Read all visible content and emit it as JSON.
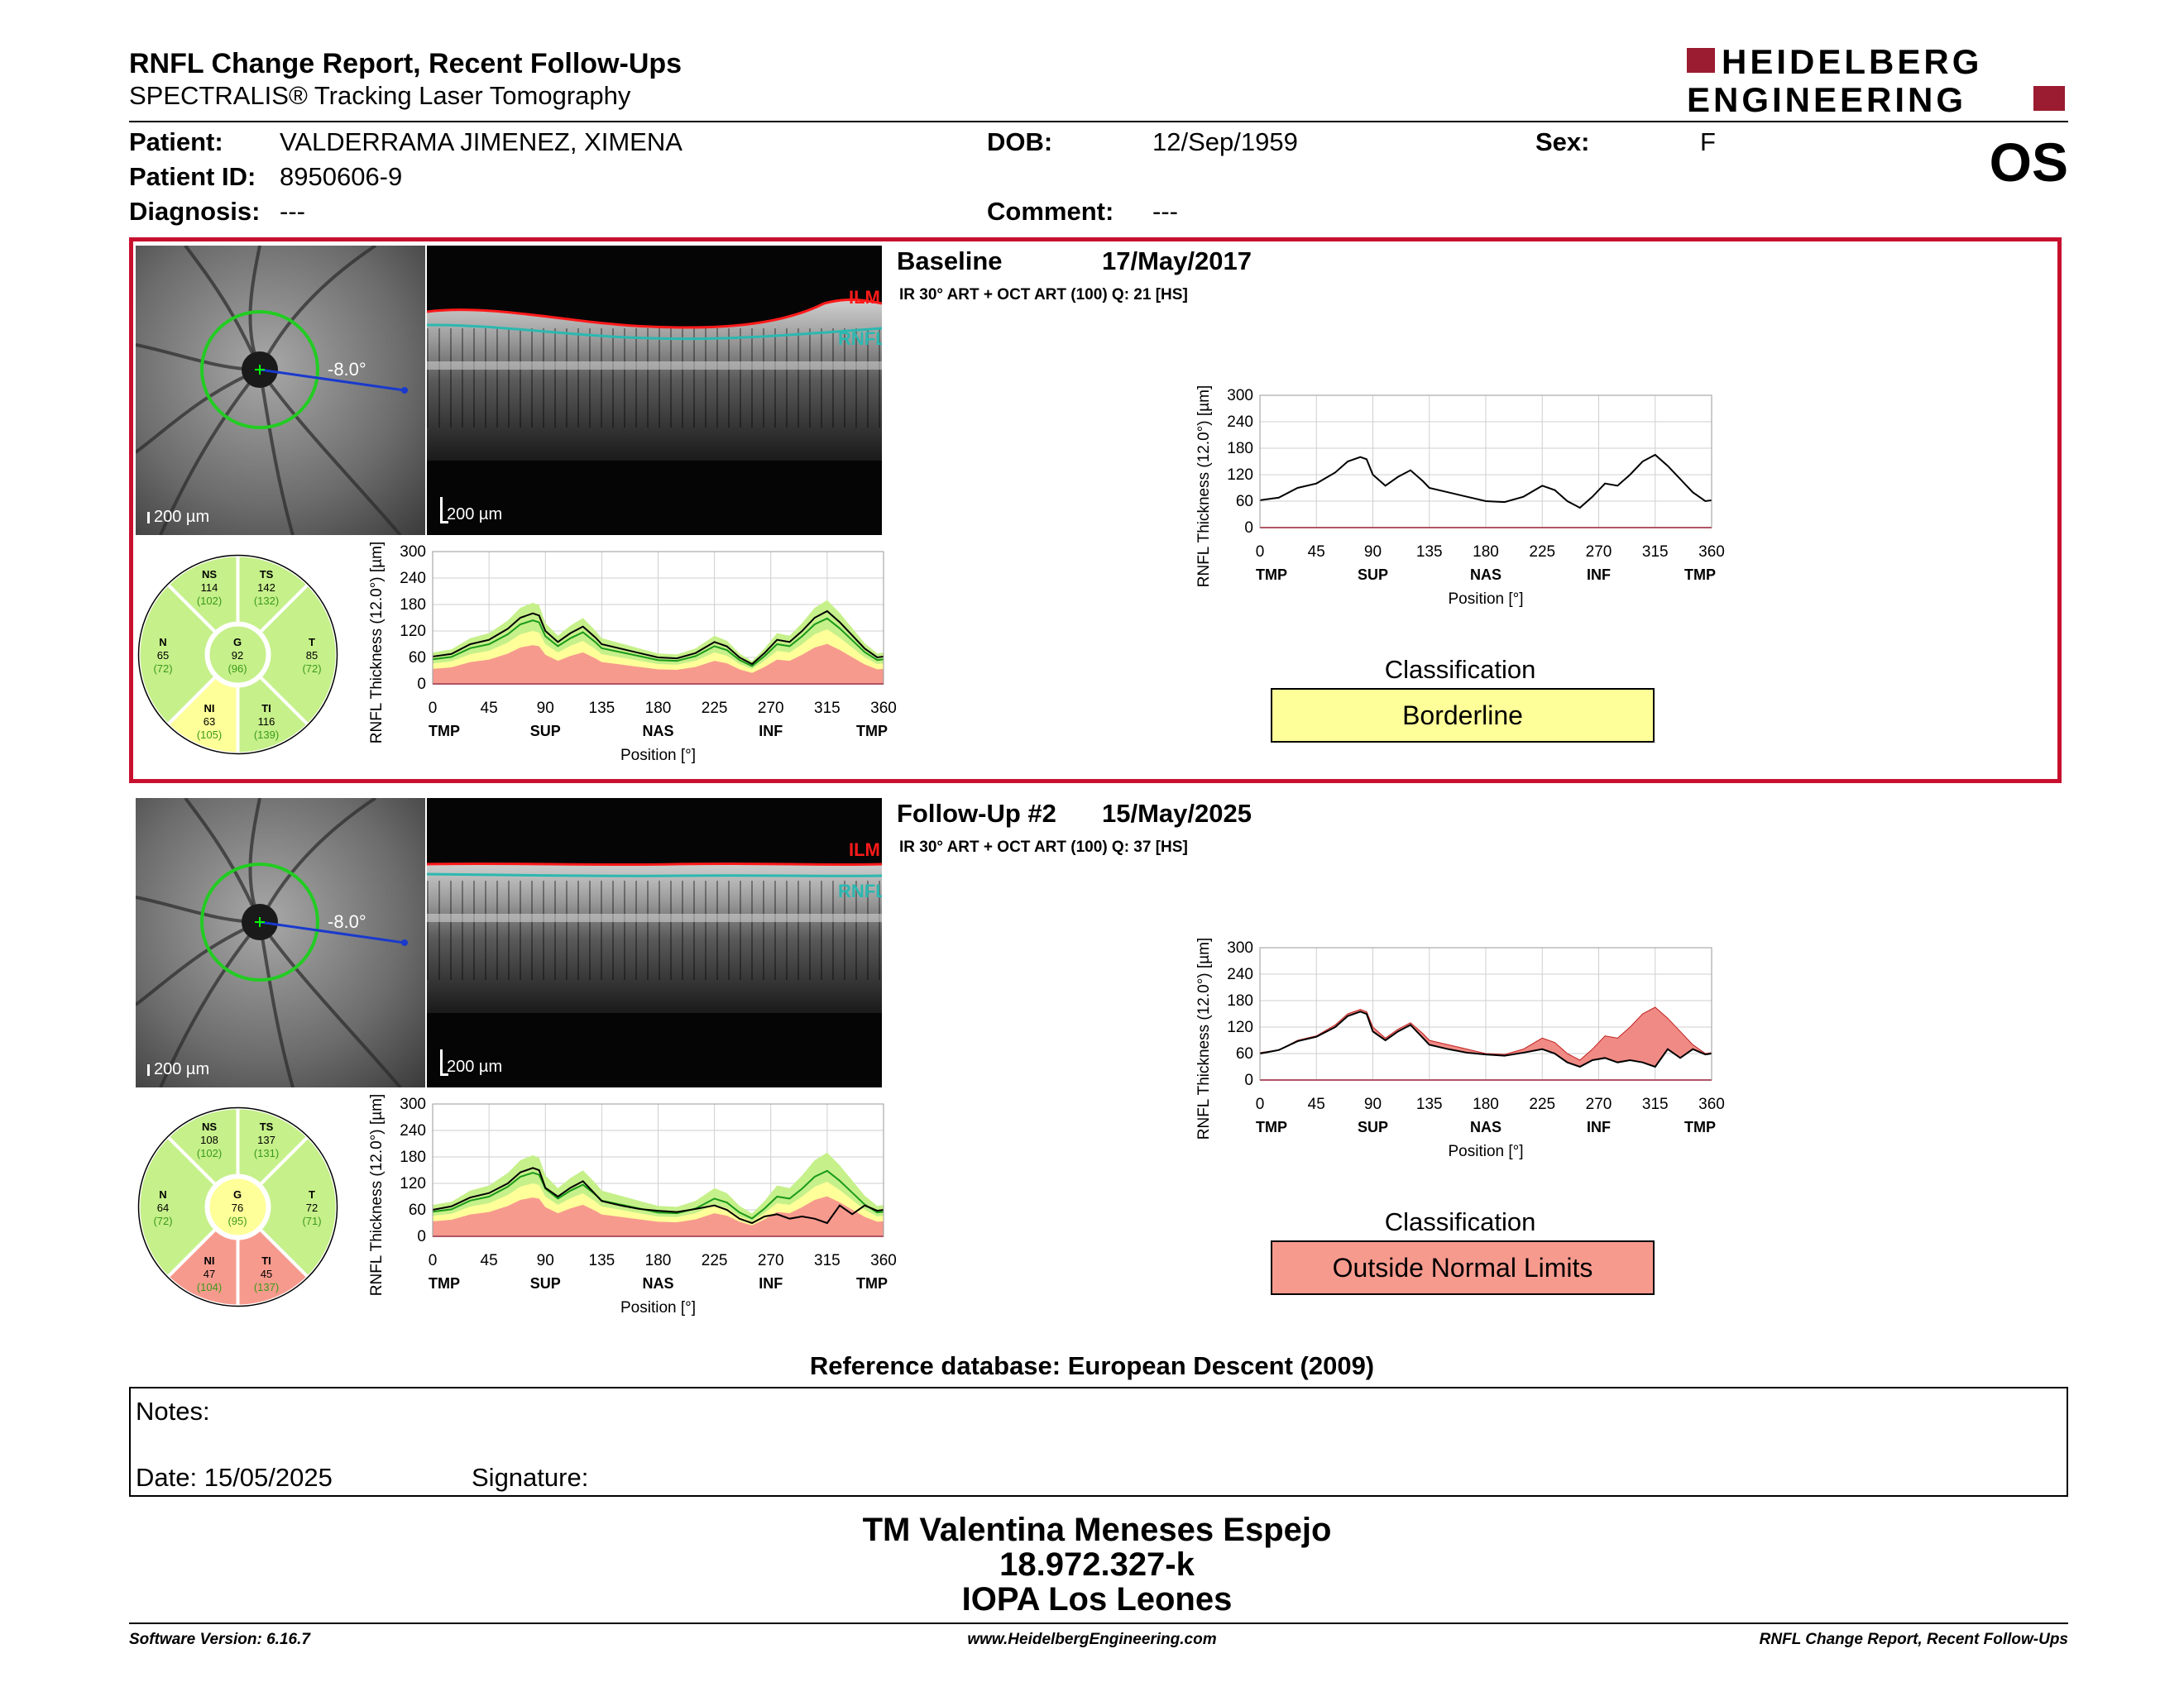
{
  "header": {
    "title": "RNFL Change Report, Recent Follow-Ups",
    "subtitle": "SPECTRALIS® Tracking Laser Tomography",
    "logo_line1": "HEIDELBERG",
    "logo_line2": "ENGINEERING",
    "eye": "OS"
  },
  "patient": {
    "patient_label": "Patient:",
    "patient_value": "VALDERRAMA JIMENEZ, XIMENA",
    "id_label": "Patient ID:",
    "id_value": "8950606-9",
    "diag_label": "Diagnosis:",
    "diag_value": "---",
    "dob_label": "DOB:",
    "dob_value": "12/Sep/1959",
    "comment_label": "Comment:",
    "comment_value": "---",
    "sex_label": "Sex:",
    "sex_value": "F"
  },
  "scans": [
    {
      "name": "Baseline",
      "date": "17/May/2017",
      "params": "IR 30° ART + OCT ART (100) Q: 21 [HS]",
      "angle": "-8.0°",
      "scale_fundus": "200 µm",
      "scale_bscan": "200 µm",
      "ilm": "ILM",
      "rnfl": "RNFL",
      "classification_title": "Classification",
      "classification": "Borderline",
      "classification_color": "#ffff99",
      "sectors": {
        "NS": {
          "label": "NS",
          "value": "114",
          "ref": "(102)"
        },
        "TS": {
          "label": "TS",
          "value": "142",
          "ref": "(132)"
        },
        "N": {
          "label": "N",
          "value": "65",
          "ref": "(72)"
        },
        "G": {
          "label": "G",
          "value": "92",
          "ref": "(96)"
        },
        "T": {
          "label": "T",
          "value": "85",
          "ref": "(72)"
        },
        "NI": {
          "label": "NI",
          "value": "63",
          "ref": "(105)"
        },
        "TI": {
          "label": "TI",
          "value": "116",
          "ref": "(139)"
        }
      },
      "sector_colors": {
        "NS": "#c6f08a",
        "TS": "#c6f08a",
        "N": "#c6f08a",
        "G": "#c6f08a",
        "T": "#c6f08a",
        "NI": "#ffff99",
        "TI": "#c6f08a"
      }
    },
    {
      "name": "Follow-Up #2",
      "date": "15/May/2025",
      "params": "IR 30° ART + OCT ART (100) Q: 37 [HS]",
      "angle": "-8.0°",
      "scale_fundus": "200 µm",
      "scale_bscan": "200 µm",
      "ilm": "ILM",
      "rnfl": "RNFL",
      "classification_title": "Classification",
      "classification": "Outside Normal Limits",
      "classification_color": "#f79a8e",
      "sectors": {
        "NS": {
          "label": "NS",
          "value": "108",
          "ref": "(102)"
        },
        "TS": {
          "label": "TS",
          "value": "137",
          "ref": "(131)"
        },
        "N": {
          "label": "N",
          "value": "64",
          "ref": "(72)"
        },
        "G": {
          "label": "G",
          "value": "76",
          "ref": "(95)"
        },
        "T": {
          "label": "T",
          "value": "72",
          "ref": "(71)"
        },
        "NI": {
          "label": "NI",
          "value": "47",
          "ref": "(104)"
        },
        "TI": {
          "label": "TI",
          "value": "45",
          "ref": "(137)"
        }
      },
      "sector_colors": {
        "NS": "#c6f08a",
        "TS": "#c6f08a",
        "N": "#c6f08a",
        "G": "#ffff99",
        "T": "#c6f08a",
        "NI": "#f79a8e",
        "TI": "#f79a8e"
      }
    }
  ],
  "chart_data": [
    {
      "type": "line",
      "chart": "baseline-profile",
      "ylabel": "RNFL Thickness (12.0°) [µm]",
      "xlabel": "Position [°]",
      "xticks": [
        "0",
        "45",
        "90",
        "135",
        "180",
        "225",
        "270",
        "315",
        "360"
      ],
      "xsectors": [
        "TMP",
        "SUP",
        "NAS",
        "INF",
        "TMP"
      ],
      "yticks": [
        "0",
        "60",
        "120",
        "180",
        "240",
        "300"
      ],
      "ylim": [
        0,
        300
      ],
      "xlim": [
        0,
        360
      ],
      "x": [
        0,
        15,
        30,
        45,
        60,
        70,
        80,
        85,
        90,
        100,
        110,
        120,
        130,
        135,
        150,
        165,
        180,
        195,
        210,
        225,
        235,
        245,
        255,
        265,
        275,
        285,
        295,
        305,
        315,
        325,
        335,
        345,
        355,
        360
      ],
      "series": [
        {
          "values": [
            62,
            68,
            90,
            100,
            125,
            150,
            160,
            155,
            120,
            95,
            115,
            130,
            105,
            90,
            80,
            70,
            60,
            58,
            70,
            95,
            85,
            60,
            45,
            70,
            100,
            95,
            120,
            150,
            165,
            140,
            110,
            80,
            60,
            62
          ]
        }
      ]
    },
    {
      "type": "line",
      "chart": "followup-profile",
      "ylabel": "RNFL Thickness (12.0°) [µm]",
      "xlabel": "Position [°]",
      "xticks": [
        "0",
        "45",
        "90",
        "135",
        "180",
        "225",
        "270",
        "315",
        "360"
      ],
      "xsectors": [
        "TMP",
        "SUP",
        "NAS",
        "INF",
        "TMP"
      ],
      "yticks": [
        "0",
        "60",
        "120",
        "180",
        "240",
        "300"
      ],
      "ylim": [
        0,
        300
      ],
      "xlim": [
        0,
        360
      ],
      "x": [
        0,
        15,
        30,
        45,
        60,
        70,
        80,
        85,
        90,
        100,
        110,
        120,
        130,
        135,
        150,
        165,
        180,
        195,
        210,
        225,
        235,
        245,
        255,
        265,
        275,
        285,
        295,
        305,
        315,
        325,
        335,
        345,
        355,
        360
      ],
      "series": [
        {
          "values": [
            60,
            68,
            88,
            98,
            120,
            145,
            155,
            150,
            110,
            90,
            110,
            125,
            95,
            80,
            70,
            62,
            58,
            55,
            62,
            70,
            60,
            40,
            30,
            45,
            50,
            40,
            45,
            40,
            30,
            70,
            50,
            70,
            58,
            60
          ]
        },
        {
          "values": [
            62,
            68,
            90,
            100,
            125,
            150,
            160,
            155,
            120,
            95,
            115,
            130,
            105,
            90,
            80,
            70,
            60,
            58,
            70,
            95,
            85,
            60,
            45,
            70,
            100,
            95,
            120,
            150,
            165,
            140,
            110,
            80,
            60,
            62
          ]
        }
      ]
    }
  ],
  "reference_db": "Reference database: European Descent (2009)",
  "notes": {
    "notes_label": "Notes:",
    "date_label": "Date: 15/05/2025",
    "signature_label": "Signature:"
  },
  "signature": {
    "line1": "TM Valentina Meneses Espejo",
    "line2": "18.972.327-k",
    "line3": "IOPA Los Leones"
  },
  "footer": {
    "left": "Software Version: 6.16.7",
    "center": "www.HeidelbergEngineering.com",
    "right": "RNFL Change Report, Recent Follow-Ups"
  }
}
